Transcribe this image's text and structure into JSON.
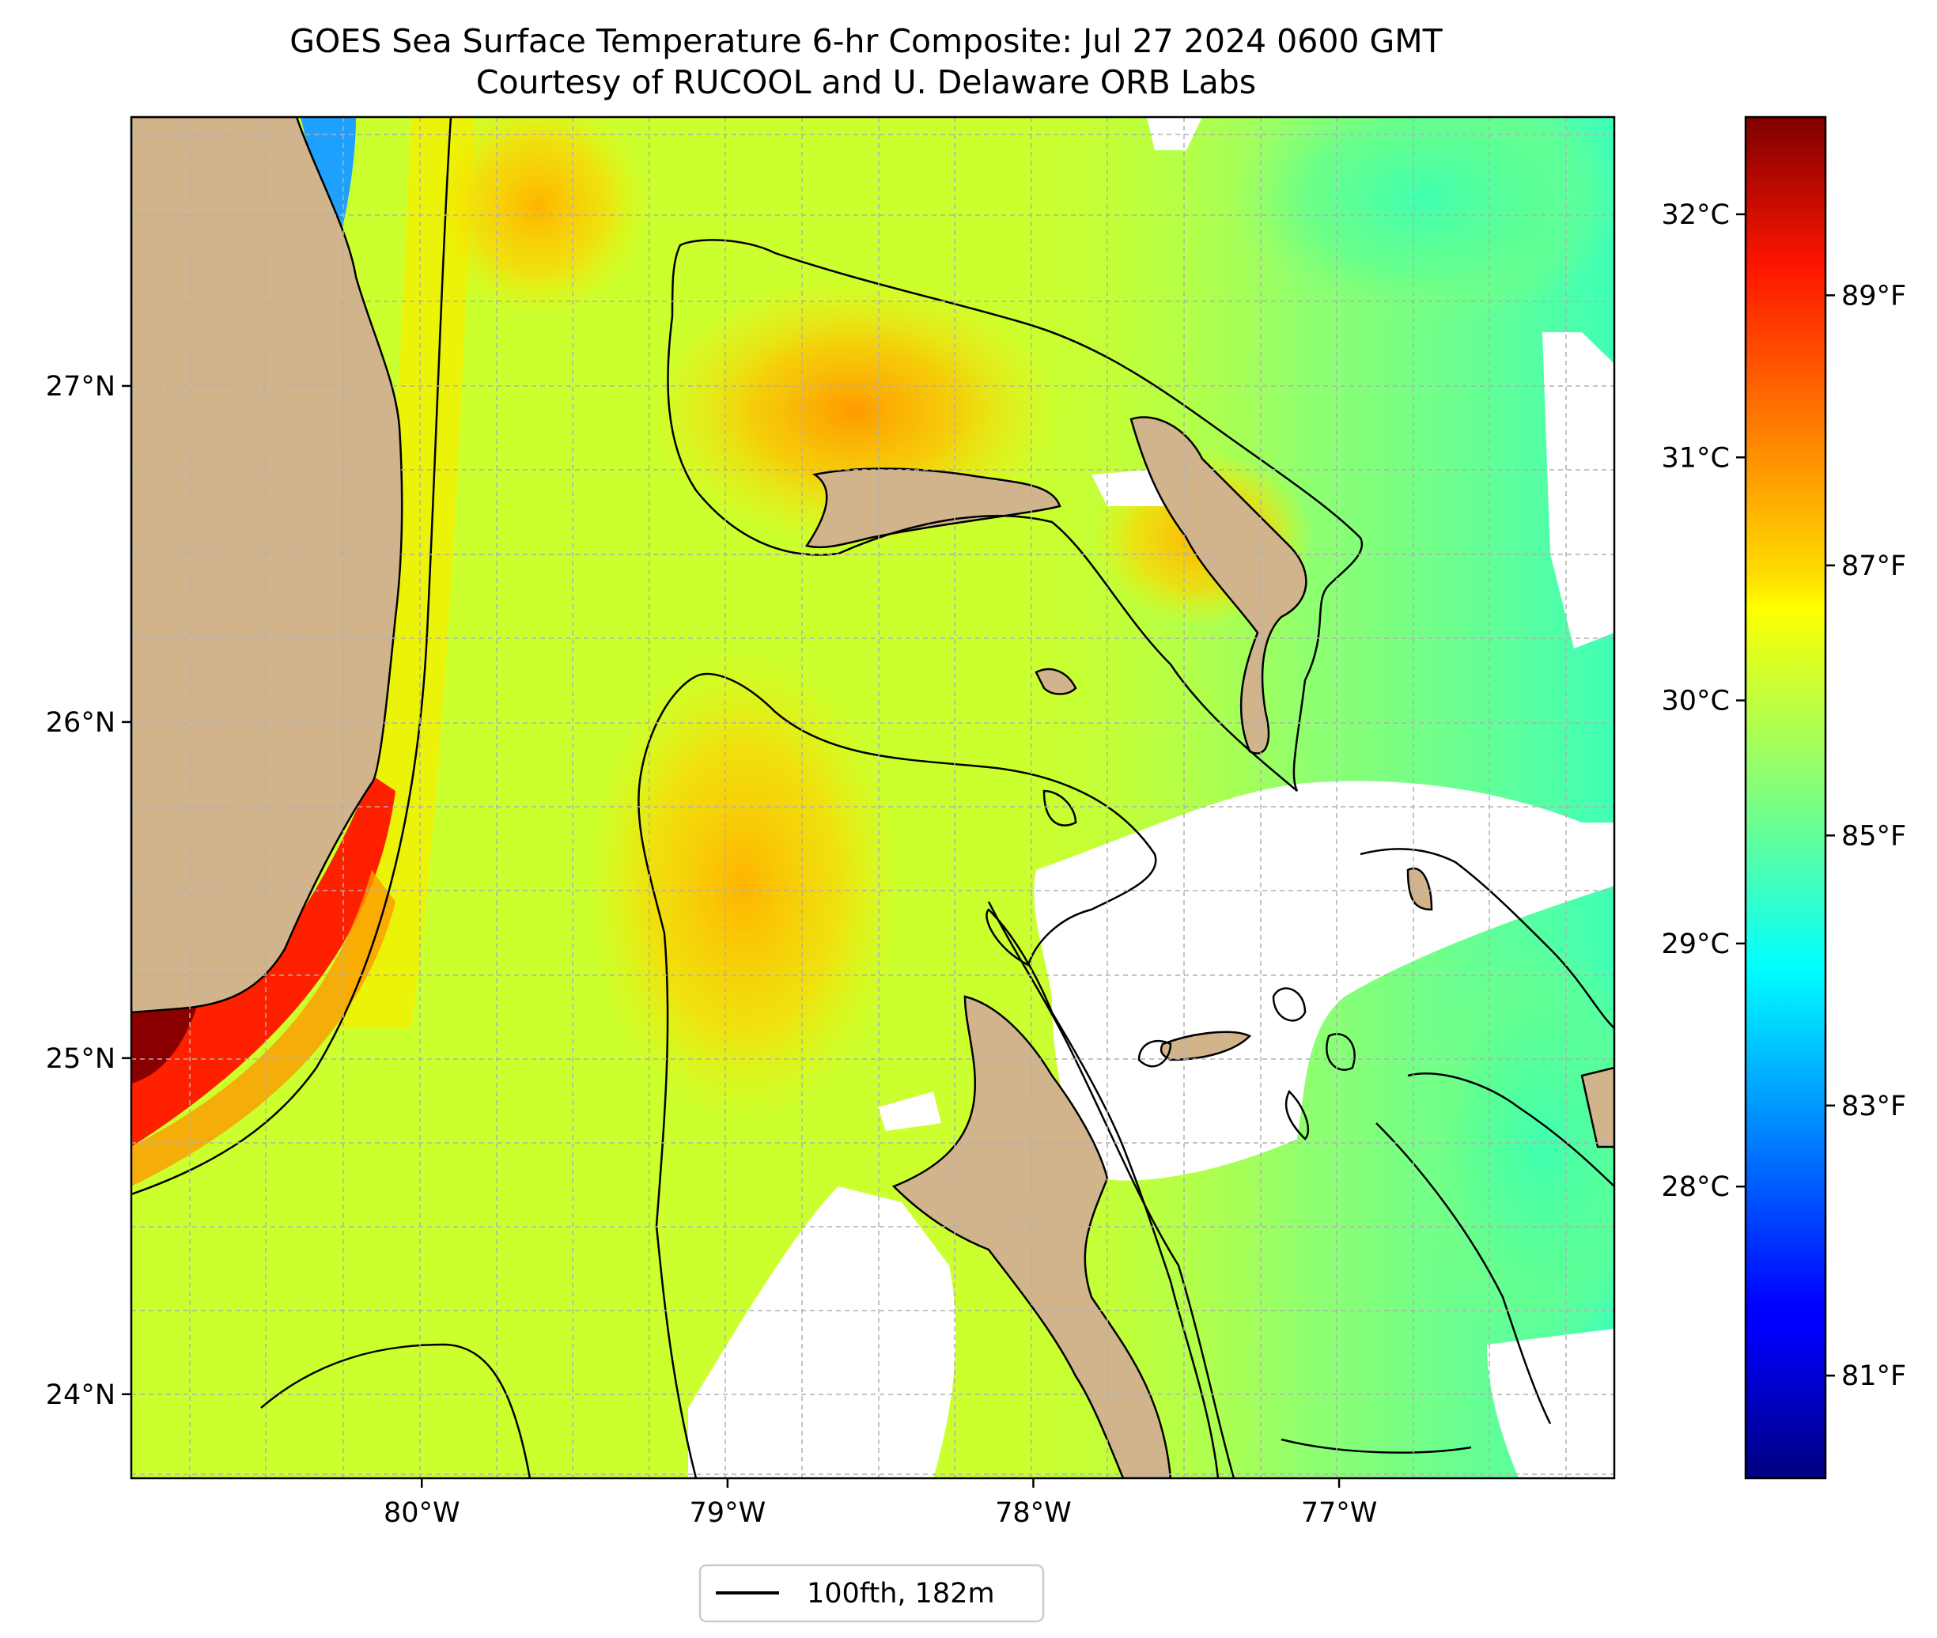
{
  "title_line1": "GOES Sea Surface Temperature 6-hr Composite: Jul 27 2024 0600 GMT",
  "title_line2": "Courtesy of RUCOOL and U. Delaware ORB Labs",
  "legend_label": "100fth, 182m",
  "colors": {
    "land": "#d2b48c",
    "no_data": "#ffffff",
    "contour": "#000000",
    "grid": "#b0b0b0"
  },
  "chart_data": {
    "type": "heatmap",
    "map_extent": {
      "lon": [
        -80.95,
        -76.1
      ],
      "lat": [
        23.75,
        27.8
      ]
    },
    "lon_ticks": [
      {
        "value": -80,
        "label": "80°W"
      },
      {
        "value": -79,
        "label": "79°W"
      },
      {
        "value": -78,
        "label": "78°W"
      },
      {
        "value": -77,
        "label": "77°W"
      }
    ],
    "lat_ticks": [
      {
        "value": 24,
        "label": "24°N"
      },
      {
        "value": 25,
        "label": "25°N"
      },
      {
        "value": 26,
        "label": "26°N"
      },
      {
        "value": 27,
        "label": "27°N"
      }
    ],
    "grid": true,
    "colorbar": {
      "colormap": "jet",
      "range_c": [
        26.8,
        32.4
      ],
      "celsius_ticks": [
        {
          "value": 28,
          "label": "28°C"
        },
        {
          "value": 29,
          "label": "29°C"
        },
        {
          "value": 30,
          "label": "30°C"
        },
        {
          "value": 31,
          "label": "31°C"
        },
        {
          "value": 32,
          "label": "32°C"
        }
      ],
      "fahrenheit_ticks": [
        {
          "value": 81,
          "label": "81°F"
        },
        {
          "value": 83,
          "label": "83°F"
        },
        {
          "value": 85,
          "label": "85°F"
        },
        {
          "value": 87,
          "label": "87°F"
        },
        {
          "value": 89,
          "label": "89°F"
        }
      ]
    },
    "legend": {
      "placement": "bottom-center",
      "entries": [
        "100fth, 182m"
      ]
    }
  }
}
